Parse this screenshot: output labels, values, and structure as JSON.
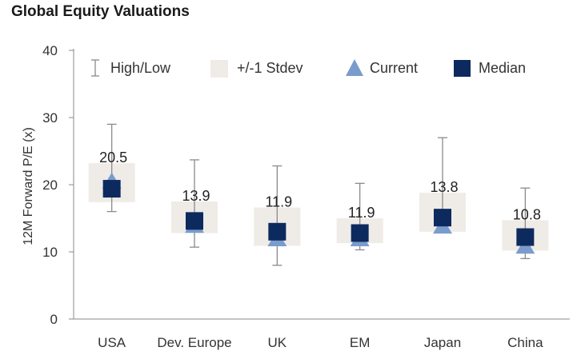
{
  "chart_data": {
    "type": "box",
    "title": "Global Equity Valuations",
    "ylabel": "12M Forward P/E (x)",
    "xlabel": "",
    "ylim": [
      0,
      40
    ],
    "yticks": [
      0,
      10,
      20,
      30,
      40
    ],
    "legend": {
      "position": "top",
      "items": [
        "High/Low",
        "+/-1 Stdev",
        "Current",
        "Median"
      ]
    },
    "colors": {
      "stdev_band": "#efebe7",
      "whisker": "#8a8a8a",
      "current": "#7a9ccc",
      "median": "#0d2a5e",
      "axis": "#888888"
    },
    "categories": [
      "USA",
      "Dev. Europe",
      "UK",
      "EM",
      "Japan",
      "China"
    ],
    "high": [
      29.0,
      23.7,
      22.8,
      20.2,
      27.0,
      19.5
    ],
    "low": [
      16.0,
      10.7,
      8.0,
      10.3,
      13.0,
      9.0
    ],
    "stdev_upper": [
      23.2,
      17.5,
      16.6,
      15.0,
      18.8,
      14.7
    ],
    "stdev_lower": [
      17.4,
      12.8,
      10.9,
      11.3,
      13.0,
      10.2
    ],
    "current": [
      20.5,
      13.9,
      11.9,
      11.9,
      13.8,
      10.8
    ],
    "median": [
      19.4,
      14.6,
      13.0,
      12.8,
      15.1,
      12.2
    ],
    "data_labels": [
      "20.5",
      "13.9",
      "11.9",
      "11.9",
      "13.8",
      "10.8"
    ]
  }
}
